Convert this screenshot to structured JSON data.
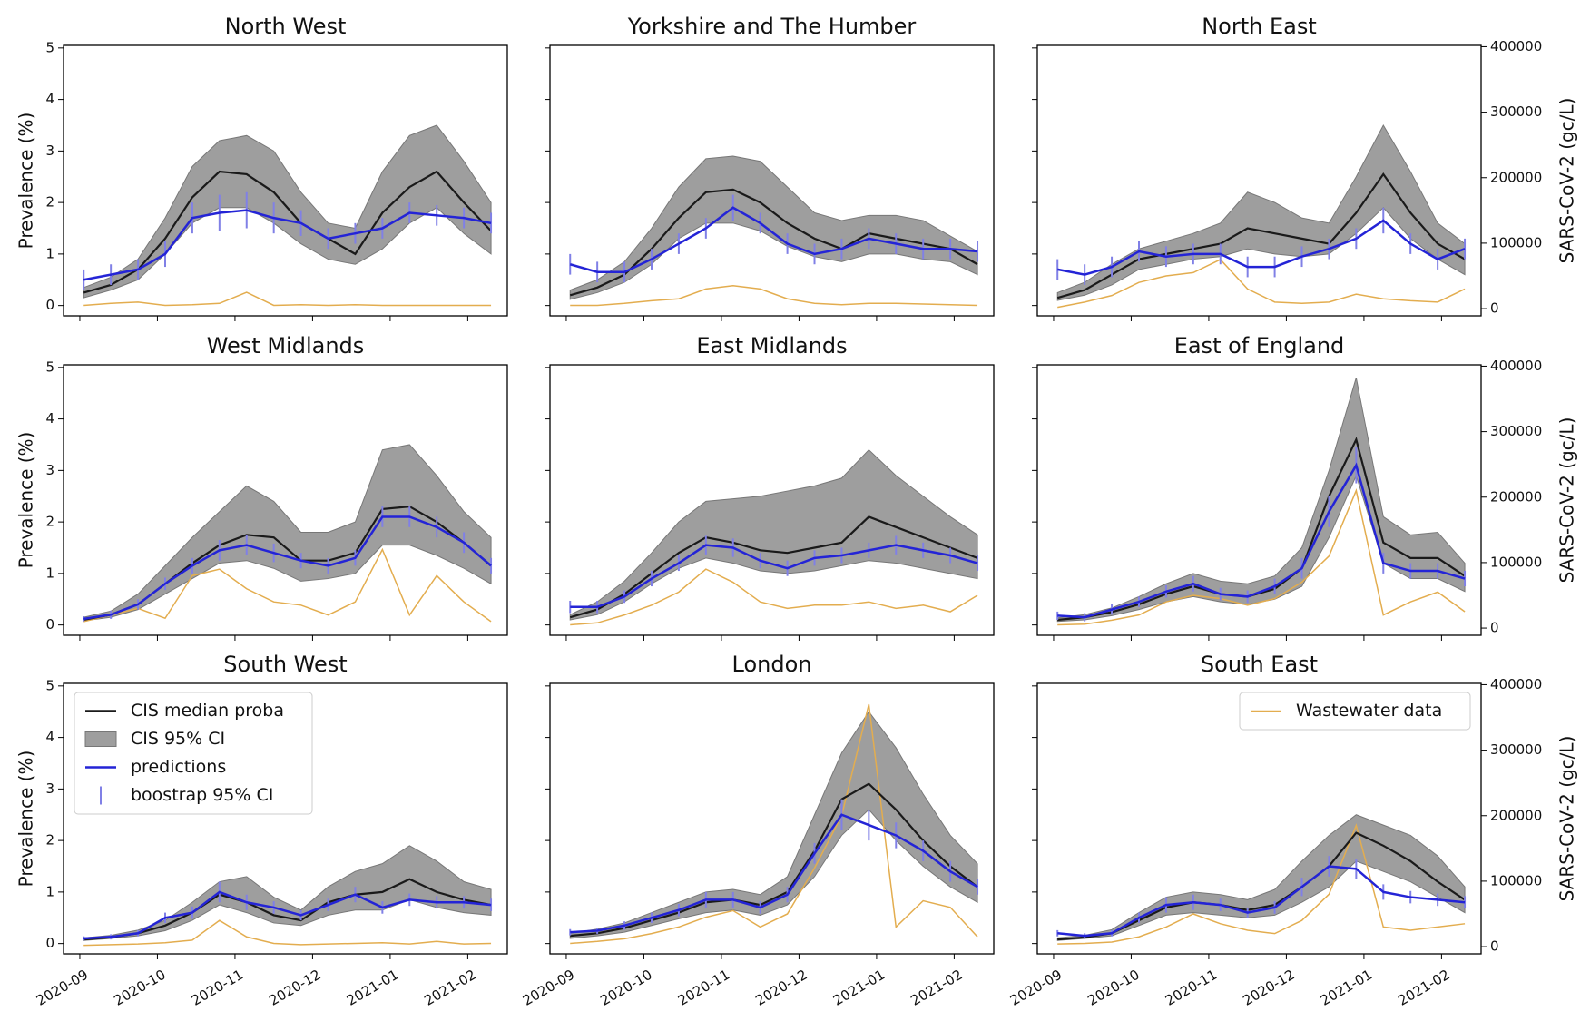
{
  "chart_data": {
    "type": "line",
    "x": [
      0.05,
      0.4,
      0.75,
      1.1,
      1.45,
      1.8,
      2.15,
      2.5,
      2.85,
      3.2,
      3.55,
      3.9,
      4.25,
      4.6,
      4.95,
      5.3
    ],
    "xlim": [
      -0.21,
      5.51
    ],
    "xticks": [
      {
        "value": 0,
        "label": "2020-09"
      },
      {
        "value": 1,
        "label": "2020-10"
      },
      {
        "value": 2,
        "label": "2020-11"
      },
      {
        "value": 3,
        "label": "2020-12"
      },
      {
        "value": 4,
        "label": "2021-01"
      },
      {
        "value": 5,
        "label": "2021-02"
      }
    ],
    "ylim": [
      -0.2,
      5.05
    ],
    "yticks": [
      0,
      1,
      2,
      3,
      4,
      5
    ],
    "y2lim": [
      -11000,
      402000
    ],
    "y2ticks": [
      0,
      100000,
      200000,
      300000,
      400000
    ],
    "ylabel": "Prevalence (%)",
    "y2label": "SARS-CoV-2 (gc/L)",
    "series": [
      {
        "name": "CIS median proba",
        "color": "#1a1a1a"
      },
      {
        "name": "CIS 95% CI",
        "color": "#9e9e9e"
      },
      {
        "name": "predictions",
        "color": "#2424d6"
      },
      {
        "name": "boostrap 95% CI",
        "color": "#8080e6"
      },
      {
        "name": "Wastewater data",
        "color": "#e3ad4f",
        "axis": "y2"
      }
    ],
    "legends": [
      {
        "panel": 6,
        "loc": "upper left",
        "series": [
          0,
          1,
          2,
          3
        ]
      },
      {
        "panel": 8,
        "loc": "upper right",
        "series": [
          4
        ]
      }
    ],
    "panels": [
      {
        "title": "North West",
        "median": [
          0.25,
          0.4,
          0.7,
          1.3,
          2.1,
          2.6,
          2.55,
          2.2,
          1.6,
          1.3,
          1.0,
          1.8,
          2.3,
          2.6,
          2.0,
          1.45
        ],
        "ci_low": [
          0.15,
          0.3,
          0.5,
          1.0,
          1.6,
          1.9,
          1.9,
          1.6,
          1.2,
          0.9,
          0.8,
          1.1,
          1.6,
          1.9,
          1.4,
          1.0
        ],
        "ci_high": [
          0.35,
          0.55,
          0.9,
          1.7,
          2.7,
          3.2,
          3.3,
          3.0,
          2.2,
          1.6,
          1.5,
          2.6,
          3.3,
          3.5,
          2.8,
          2.0
        ],
        "pred": [
          0.5,
          0.6,
          0.7,
          1.0,
          1.7,
          1.8,
          1.85,
          1.7,
          1.6,
          1.3,
          1.4,
          1.5,
          1.8,
          1.75,
          1.7,
          1.6
        ],
        "pred_err": [
          0.2,
          0.2,
          0.2,
          0.25,
          0.3,
          0.35,
          0.35,
          0.3,
          0.25,
          0.2,
          0.2,
          0.2,
          0.2,
          0.2,
          0.2,
          0.2
        ],
        "wastewater": [
          5000,
          8000,
          10000,
          5000,
          6000,
          8000,
          25000,
          5000,
          6000,
          5000,
          6000,
          5000,
          5000,
          5000,
          5000,
          5000
        ]
      },
      {
        "title": "Yorkshire and The Humber",
        "median": [
          0.2,
          0.35,
          0.6,
          1.1,
          1.7,
          2.2,
          2.25,
          2.0,
          1.6,
          1.3,
          1.1,
          1.4,
          1.3,
          1.2,
          1.1,
          0.8
        ],
        "ci_low": [
          0.12,
          0.25,
          0.45,
          0.8,
          1.3,
          1.6,
          1.6,
          1.45,
          1.15,
          0.95,
          0.85,
          1.0,
          1.0,
          0.9,
          0.85,
          0.6
        ],
        "ci_high": [
          0.3,
          0.5,
          0.85,
          1.5,
          2.3,
          2.85,
          2.9,
          2.8,
          2.3,
          1.8,
          1.65,
          1.75,
          1.75,
          1.65,
          1.35,
          1.05
        ],
        "pred": [
          0.8,
          0.65,
          0.65,
          0.9,
          1.2,
          1.5,
          1.9,
          1.6,
          1.2,
          1.0,
          1.1,
          1.3,
          1.2,
          1.1,
          1.1,
          1.05
        ],
        "pred_err": [
          0.2,
          0.2,
          0.2,
          0.2,
          0.2,
          0.2,
          0.25,
          0.2,
          0.2,
          0.2,
          0.2,
          0.2,
          0.2,
          0.2,
          0.2,
          0.2
        ],
        "wastewater": [
          5000,
          5000,
          8000,
          12000,
          15000,
          30000,
          35000,
          30000,
          15000,
          8000,
          6000,
          8000,
          8000,
          7000,
          6000,
          5000
        ]
      },
      {
        "title": "North East",
        "median": [
          0.15,
          0.3,
          0.6,
          0.9,
          1.0,
          1.1,
          1.2,
          1.5,
          1.4,
          1.3,
          1.2,
          1.8,
          2.55,
          1.8,
          1.2,
          0.9
        ],
        "ci_low": [
          0.1,
          0.2,
          0.4,
          0.7,
          0.8,
          0.9,
          0.95,
          1.1,
          1.0,
          0.95,
          1.0,
          1.4,
          1.9,
          1.3,
          0.9,
          0.6
        ],
        "ci_high": [
          0.25,
          0.45,
          0.8,
          1.1,
          1.25,
          1.4,
          1.6,
          2.2,
          2.0,
          1.7,
          1.6,
          2.5,
          3.5,
          2.6,
          1.6,
          1.2
        ],
        "pred": [
          0.7,
          0.6,
          0.75,
          1.05,
          0.95,
          1.0,
          1.0,
          0.75,
          0.75,
          0.95,
          1.1,
          1.3,
          1.65,
          1.2,
          0.9,
          1.1
        ],
        "pred_err": [
          0.2,
          0.2,
          0.2,
          0.2,
          0.2,
          0.2,
          0.2,
          0.2,
          0.2,
          0.2,
          0.2,
          0.2,
          0.25,
          0.2,
          0.2,
          0.2
        ],
        "wastewater": [
          2000,
          10000,
          20000,
          40000,
          50000,
          55000,
          75000,
          30000,
          10000,
          8000,
          10000,
          22000,
          15000,
          12000,
          10000,
          30000
        ]
      },
      {
        "title": "West Midlands",
        "median": [
          0.1,
          0.2,
          0.4,
          0.8,
          1.2,
          1.55,
          1.75,
          1.7,
          1.25,
          1.25,
          1.4,
          2.25,
          2.3,
          2.0,
          1.6,
          1.15
        ],
        "ci_low": [
          0.08,
          0.15,
          0.3,
          0.6,
          0.9,
          1.2,
          1.25,
          1.1,
          0.85,
          0.9,
          1.0,
          1.55,
          1.55,
          1.35,
          1.1,
          0.8
        ],
        "ci_high": [
          0.15,
          0.27,
          0.6,
          1.15,
          1.7,
          2.2,
          2.7,
          2.4,
          1.8,
          1.8,
          2.0,
          3.4,
          3.5,
          2.9,
          2.2,
          1.7
        ],
        "pred": [
          0.12,
          0.2,
          0.4,
          0.8,
          1.15,
          1.45,
          1.55,
          1.4,
          1.25,
          1.15,
          1.3,
          2.1,
          2.1,
          1.9,
          1.6,
          1.15
        ],
        "pred_err": [
          0.05,
          0.08,
          0.1,
          0.12,
          0.15,
          0.2,
          0.2,
          0.18,
          0.15,
          0.15,
          0.15,
          0.2,
          0.2,
          0.2,
          0.2,
          0.15
        ],
        "wastewater": [
          10000,
          20000,
          30000,
          15000,
          80000,
          90000,
          60000,
          40000,
          35000,
          20000,
          40000,
          120000,
          20000,
          80000,
          40000,
          10000
        ]
      },
      {
        "title": "East Midlands",
        "median": [
          0.15,
          0.3,
          0.6,
          1.0,
          1.4,
          1.7,
          1.6,
          1.45,
          1.4,
          1.5,
          1.6,
          2.1,
          1.9,
          1.7,
          1.5,
          1.3
        ],
        "ci_low": [
          0.1,
          0.2,
          0.45,
          0.8,
          1.1,
          1.3,
          1.2,
          1.05,
          1.0,
          1.05,
          1.15,
          1.25,
          1.2,
          1.1,
          1.0,
          0.9
        ],
        "ci_high": [
          0.2,
          0.45,
          0.85,
          1.4,
          2.0,
          2.4,
          2.45,
          2.5,
          2.6,
          2.7,
          2.85,
          3.4,
          2.9,
          2.5,
          2.1,
          1.75
        ],
        "pred": [
          0.35,
          0.35,
          0.55,
          0.9,
          1.2,
          1.55,
          1.5,
          1.25,
          1.1,
          1.3,
          1.35,
          1.45,
          1.55,
          1.45,
          1.35,
          1.2
        ],
        "pred_err": [
          0.12,
          0.12,
          0.12,
          0.15,
          0.15,
          0.18,
          0.18,
          0.15,
          0.15,
          0.15,
          0.15,
          0.15,
          0.18,
          0.15,
          0.15,
          0.15
        ],
        "wastewater": [
          5000,
          8000,
          20000,
          35000,
          55000,
          90000,
          70000,
          40000,
          30000,
          35000,
          35000,
          40000,
          30000,
          35000,
          25000,
          50000
        ]
      },
      {
        "title": "East of England",
        "median": [
          0.1,
          0.15,
          0.25,
          0.4,
          0.6,
          0.75,
          0.6,
          0.55,
          0.7,
          1.1,
          2.5,
          3.6,
          1.6,
          1.3,
          1.3,
          0.95
        ],
        "ci_low": [
          0.07,
          0.1,
          0.18,
          0.3,
          0.45,
          0.55,
          0.45,
          0.4,
          0.5,
          0.75,
          1.7,
          2.9,
          1.2,
          0.9,
          0.9,
          0.65
        ],
        "ci_high": [
          0.14,
          0.2,
          0.33,
          0.55,
          0.8,
          1.0,
          0.85,
          0.8,
          0.95,
          1.5,
          3.0,
          4.8,
          2.1,
          1.75,
          1.8,
          1.2
        ],
        "pred": [
          0.18,
          0.15,
          0.3,
          0.45,
          0.65,
          0.8,
          0.6,
          0.55,
          0.75,
          1.1,
          2.2,
          3.1,
          1.2,
          1.05,
          1.05,
          0.9
        ],
        "pred_err": [
          0.08,
          0.08,
          0.1,
          0.1,
          0.12,
          0.15,
          0.12,
          0.12,
          0.15,
          0.2,
          0.3,
          0.35,
          0.2,
          0.15,
          0.15,
          0.15
        ],
        "wastewater": [
          5000,
          6000,
          12000,
          20000,
          40000,
          50000,
          45000,
          35000,
          45000,
          70000,
          110000,
          210000,
          20000,
          40000,
          55000,
          25000
        ]
      },
      {
        "title": "South West",
        "median": [
          0.08,
          0.12,
          0.2,
          0.35,
          0.6,
          0.95,
          0.8,
          0.55,
          0.45,
          0.8,
          0.95,
          1.0,
          1.25,
          1.0,
          0.85,
          0.75
        ],
        "ci_low": [
          0.06,
          0.1,
          0.15,
          0.25,
          0.45,
          0.75,
          0.6,
          0.4,
          0.35,
          0.55,
          0.65,
          0.65,
          0.85,
          0.7,
          0.6,
          0.55
        ],
        "ci_high": [
          0.11,
          0.16,
          0.26,
          0.45,
          0.8,
          1.2,
          1.3,
          0.9,
          0.65,
          1.1,
          1.4,
          1.55,
          1.9,
          1.6,
          1.2,
          1.05
        ],
        "pred": [
          0.1,
          0.13,
          0.2,
          0.5,
          0.6,
          1.0,
          0.8,
          0.7,
          0.55,
          0.75,
          0.95,
          0.7,
          0.85,
          0.8,
          0.8,
          0.75
        ],
        "pred_err": [
          0.04,
          0.05,
          0.06,
          0.1,
          0.12,
          0.2,
          0.15,
          0.12,
          0.1,
          0.12,
          0.15,
          0.12,
          0.12,
          0.12,
          0.12,
          0.12
        ],
        "wastewater": [
          2000,
          3000,
          4000,
          6000,
          10000,
          40000,
          15000,
          5000,
          3000,
          4000,
          5000,
          6000,
          4000,
          8000,
          4000,
          5000
        ]
      },
      {
        "title": "London",
        "median": [
          0.15,
          0.2,
          0.3,
          0.45,
          0.6,
          0.8,
          0.85,
          0.75,
          1.0,
          1.8,
          2.8,
          3.1,
          2.6,
          2.0,
          1.5,
          1.1
        ],
        "ci_low": [
          0.1,
          0.15,
          0.22,
          0.35,
          0.48,
          0.6,
          0.65,
          0.55,
          0.75,
          1.3,
          2.1,
          2.6,
          2.0,
          1.5,
          1.1,
          0.8
        ],
        "ci_high": [
          0.2,
          0.28,
          0.4,
          0.6,
          0.8,
          1.0,
          1.05,
          0.95,
          1.3,
          2.5,
          3.7,
          4.5,
          3.8,
          2.9,
          2.1,
          1.55
        ],
        "pred": [
          0.22,
          0.25,
          0.35,
          0.5,
          0.65,
          0.85,
          0.85,
          0.7,
          0.95,
          1.75,
          2.5,
          2.3,
          2.1,
          1.8,
          1.4,
          1.1
        ],
        "pred_err": [
          0.06,
          0.06,
          0.08,
          0.1,
          0.12,
          0.15,
          0.15,
          0.12,
          0.15,
          0.2,
          0.3,
          0.3,
          0.25,
          0.2,
          0.2,
          0.15
        ],
        "wastewater": [
          5000,
          8000,
          12000,
          20000,
          30000,
          45000,
          55000,
          30000,
          50000,
          120000,
          200000,
          370000,
          30000,
          70000,
          60000,
          15000
        ]
      },
      {
        "title": "South East",
        "median": [
          0.08,
          0.12,
          0.2,
          0.45,
          0.7,
          0.8,
          0.75,
          0.65,
          0.75,
          1.1,
          1.5,
          2.15,
          1.9,
          1.6,
          1.2,
          0.85
        ],
        "ci_low": [
          0.06,
          0.1,
          0.15,
          0.35,
          0.55,
          0.6,
          0.55,
          0.5,
          0.55,
          0.8,
          1.1,
          1.6,
          1.4,
          1.2,
          0.9,
          0.6
        ],
        "ci_high": [
          0.11,
          0.16,
          0.27,
          0.6,
          0.9,
          1.0,
          0.95,
          0.85,
          1.05,
          1.6,
          2.1,
          2.5,
          2.3,
          2.1,
          1.7,
          1.1
        ],
        "pred": [
          0.2,
          0.15,
          0.2,
          0.5,
          0.75,
          0.8,
          0.75,
          0.6,
          0.7,
          1.1,
          1.5,
          1.45,
          1.0,
          0.9,
          0.85,
          0.8
        ],
        "pred_err": [
          0.06,
          0.05,
          0.06,
          0.1,
          0.15,
          0.15,
          0.12,
          0.1,
          0.12,
          0.18,
          0.2,
          0.2,
          0.15,
          0.12,
          0.12,
          0.12
        ],
        "wastewater": [
          4000,
          5000,
          7000,
          15000,
          30000,
          50000,
          35000,
          25000,
          20000,
          40000,
          80000,
          185000,
          30000,
          25000,
          30000,
          35000
        ]
      }
    ]
  }
}
